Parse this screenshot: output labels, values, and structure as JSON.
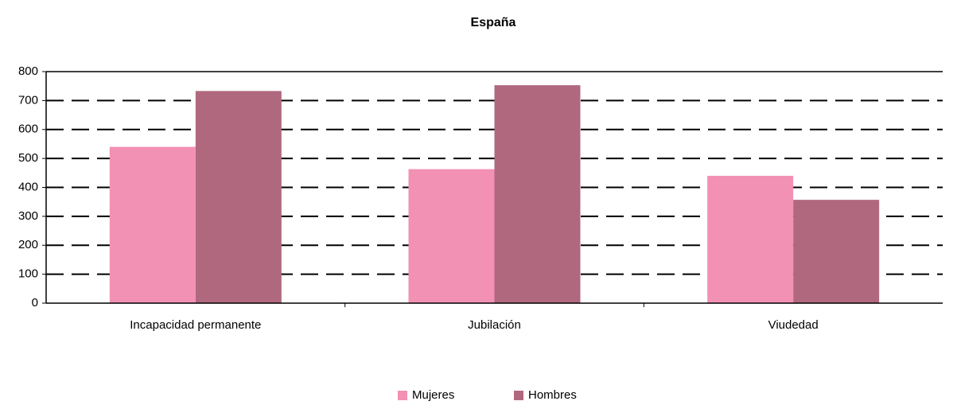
{
  "chart_data": {
    "type": "bar",
    "title": "España",
    "categories": [
      "Incapacidad permanente",
      "Jubilación",
      "Viudedad"
    ],
    "series": [
      {
        "name": "Mujeres",
        "color": "#f291b4",
        "values": [
          540,
          463,
          440
        ]
      },
      {
        "name": "Hombres",
        "color": "#b0687f",
        "values": [
          733,
          753,
          357
        ]
      }
    ],
    "ylim": [
      0,
      800
    ],
    "yticks": [
      0,
      100,
      200,
      300,
      400,
      500,
      600,
      700,
      800
    ],
    "grid": true,
    "legend": "bottom"
  }
}
